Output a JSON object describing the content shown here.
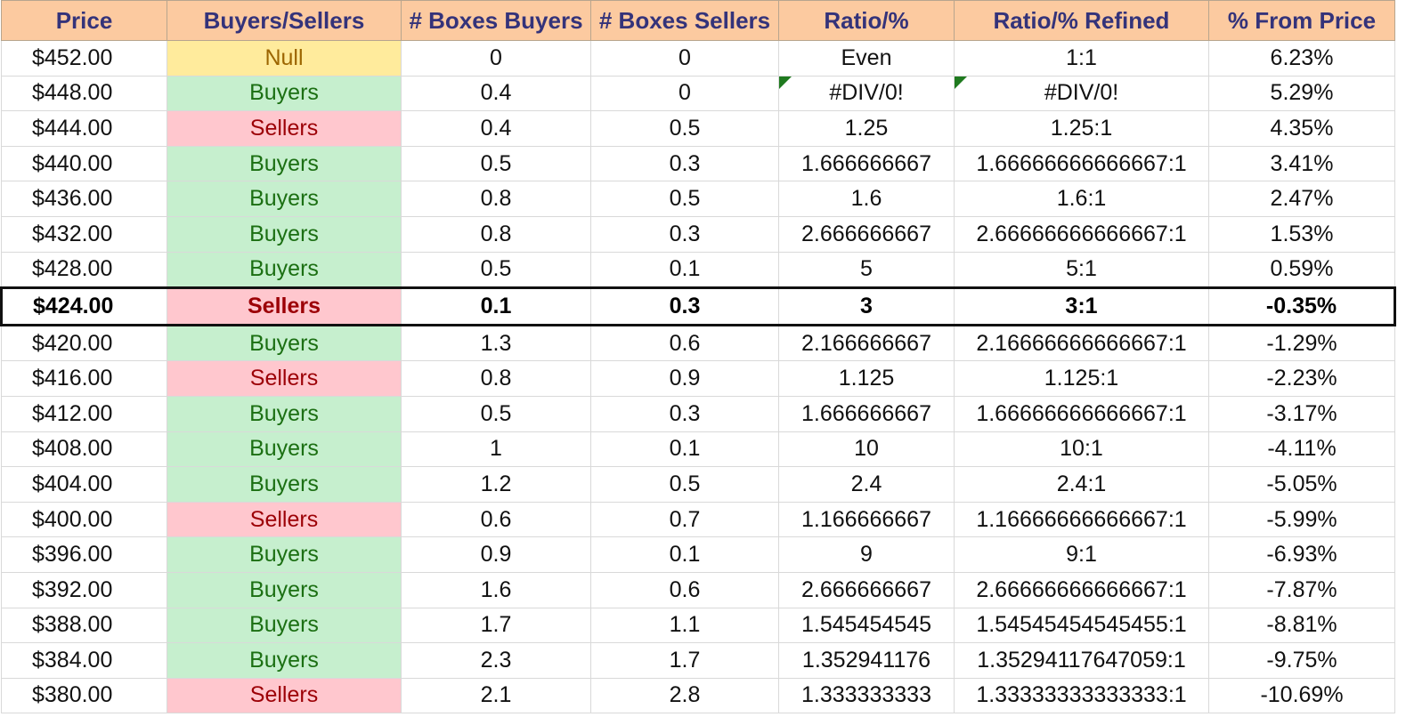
{
  "headers": [
    "Price",
    "Buyers/Sellers",
    "# Boxes Buyers",
    "# Boxes Sellers",
    "Ratio/%",
    "Ratio/% Refined",
    "% From Price"
  ],
  "current_price_row_index": 7,
  "error_flag_color": "#1f7a1f",
  "side_colors": {
    "Buyers": {
      "background": "#c6efce",
      "text": "#1b6f12"
    },
    "Sellers": {
      "background": "#ffc7ce",
      "text": "#9c0006"
    },
    "Null": {
      "background": "#ffeb9c",
      "text": "#9c6500"
    }
  },
  "header_colors": {
    "background": "#fccaa0",
    "text": "#34337a"
  },
  "rows": [
    {
      "price": "$452.00",
      "side": "Null",
      "buyers": "0",
      "sellers": "0",
      "ratio": "Even",
      "refined": "1:1",
      "from_price": "6.23%",
      "flag": false
    },
    {
      "price": "$448.00",
      "side": "Buyers",
      "buyers": "0.4",
      "sellers": "0",
      "ratio": "#DIV/0!",
      "refined": "#DIV/0!",
      "from_price": "5.29%",
      "flag": true
    },
    {
      "price": "$444.00",
      "side": "Sellers",
      "buyers": "0.4",
      "sellers": "0.5",
      "ratio": "1.25",
      "refined": "1.25:1",
      "from_price": "4.35%",
      "flag": false
    },
    {
      "price": "$440.00",
      "side": "Buyers",
      "buyers": "0.5",
      "sellers": "0.3",
      "ratio": "1.666666667",
      "refined": "1.66666666666667:1",
      "from_price": "3.41%",
      "flag": false
    },
    {
      "price": "$436.00",
      "side": "Buyers",
      "buyers": "0.8",
      "sellers": "0.5",
      "ratio": "1.6",
      "refined": "1.6:1",
      "from_price": "2.47%",
      "flag": false
    },
    {
      "price": "$432.00",
      "side": "Buyers",
      "buyers": "0.8",
      "sellers": "0.3",
      "ratio": "2.666666667",
      "refined": "2.66666666666667:1",
      "from_price": "1.53%",
      "flag": false
    },
    {
      "price": "$428.00",
      "side": "Buyers",
      "buyers": "0.5",
      "sellers": "0.1",
      "ratio": "5",
      "refined": "5:1",
      "from_price": "0.59%",
      "flag": false
    },
    {
      "price": "$424.00",
      "side": "Sellers",
      "buyers": "0.1",
      "sellers": "0.3",
      "ratio": "3",
      "refined": "3:1",
      "from_price": "-0.35%",
      "flag": false
    },
    {
      "price": "$420.00",
      "side": "Buyers",
      "buyers": "1.3",
      "sellers": "0.6",
      "ratio": "2.166666667",
      "refined": "2.16666666666667:1",
      "from_price": "-1.29%",
      "flag": false
    },
    {
      "price": "$416.00",
      "side": "Sellers",
      "buyers": "0.8",
      "sellers": "0.9",
      "ratio": "1.125",
      "refined": "1.125:1",
      "from_price": "-2.23%",
      "flag": false
    },
    {
      "price": "$412.00",
      "side": "Buyers",
      "buyers": "0.5",
      "sellers": "0.3",
      "ratio": "1.666666667",
      "refined": "1.66666666666667:1",
      "from_price": "-3.17%",
      "flag": false
    },
    {
      "price": "$408.00",
      "side": "Buyers",
      "buyers": "1",
      "sellers": "0.1",
      "ratio": "10",
      "refined": "10:1",
      "from_price": "-4.11%",
      "flag": false
    },
    {
      "price": "$404.00",
      "side": "Buyers",
      "buyers": "1.2",
      "sellers": "0.5",
      "ratio": "2.4",
      "refined": "2.4:1",
      "from_price": "-5.05%",
      "flag": false
    },
    {
      "price": "$400.00",
      "side": "Sellers",
      "buyers": "0.6",
      "sellers": "0.7",
      "ratio": "1.166666667",
      "refined": "1.16666666666667:1",
      "from_price": "-5.99%",
      "flag": false
    },
    {
      "price": "$396.00",
      "side": "Buyers",
      "buyers": "0.9",
      "sellers": "0.1",
      "ratio": "9",
      "refined": "9:1",
      "from_price": "-6.93%",
      "flag": false
    },
    {
      "price": "$392.00",
      "side": "Buyers",
      "buyers": "1.6",
      "sellers": "0.6",
      "ratio": "2.666666667",
      "refined": "2.66666666666667:1",
      "from_price": "-7.87%",
      "flag": false
    },
    {
      "price": "$388.00",
      "side": "Buyers",
      "buyers": "1.7",
      "sellers": "1.1",
      "ratio": "1.545454545",
      "refined": "1.54545454545455:1",
      "from_price": "-8.81%",
      "flag": false
    },
    {
      "price": "$384.00",
      "side": "Buyers",
      "buyers": "2.3",
      "sellers": "1.7",
      "ratio": "1.352941176",
      "refined": "1.35294117647059:1",
      "from_price": "-9.75%",
      "flag": false
    },
    {
      "price": "$380.00",
      "side": "Sellers",
      "buyers": "2.1",
      "sellers": "2.8",
      "ratio": "1.333333333",
      "refined": "1.33333333333333:1",
      "from_price": "-10.69%",
      "flag": false
    }
  ]
}
